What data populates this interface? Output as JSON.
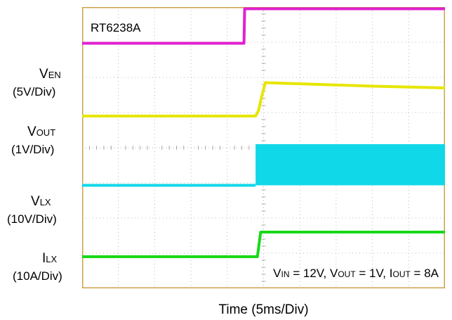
{
  "colors": {
    "background": "#ffffff",
    "frame": "#cfa14a",
    "grid": "#9a9a9a",
    "ven": "#e020d0",
    "vout": "#e6e600",
    "vlx": "#10d8e8",
    "ilx": "#18d818",
    "trigger_marker": "#e08a00"
  },
  "chart_data": {
    "type": "line",
    "title": "RT6238A",
    "xlabel": "Time (5ms/Div)",
    "x_unit": "div",
    "xlim": [
      0,
      10
    ],
    "ylim_div": [
      0,
      8
    ],
    "grid": true,
    "condition_note": {
      "v": "V",
      "in": "IN",
      "eq1": " = 12V, ",
      "out": "OUT",
      "eq2": " = 1V, ",
      "i": "I",
      "eq3": " = 8A"
    },
    "series": [
      {
        "key": "ven",
        "label_main": "V",
        "label_sub": "EN",
        "scale": "(5V/Div)",
        "color": "#e020d0",
        "x": [
          0,
          4.46,
          4.48,
          10
        ],
        "y_div": [
          6.97,
          6.97,
          7.95,
          7.95
        ]
      },
      {
        "key": "vout",
        "label_main": "V",
        "label_sub": "OUT",
        "scale": "(1V/Div)",
        "color": "#e6e600",
        "x": [
          0,
          4.78,
          4.86,
          4.96,
          5.05,
          6.5,
          8.0,
          10
        ],
        "y_div": [
          4.9,
          4.9,
          5.05,
          5.5,
          5.85,
          5.8,
          5.75,
          5.7
        ]
      },
      {
        "key": "vlx",
        "label_main": "V",
        "label_sub": "LX",
        "scale": "(10V/Div)",
        "color": "#10d8e8",
        "type": "switching",
        "x": [
          0,
          4.78
        ],
        "y_div": [
          2.93,
          2.93
        ],
        "band": {
          "x_start": 4.8,
          "x_end": 10,
          "y_low_div": 2.93,
          "y_high_div": 4.1
        }
      },
      {
        "key": "ilx",
        "label_main": "I",
        "label_sub": "LX",
        "scale": "(10A/Div)",
        "color": "#18d818",
        "x": [
          0,
          4.83,
          4.92,
          10
        ],
        "y_div": [
          0.9,
          0.9,
          1.6,
          1.6
        ]
      }
    ]
  }
}
